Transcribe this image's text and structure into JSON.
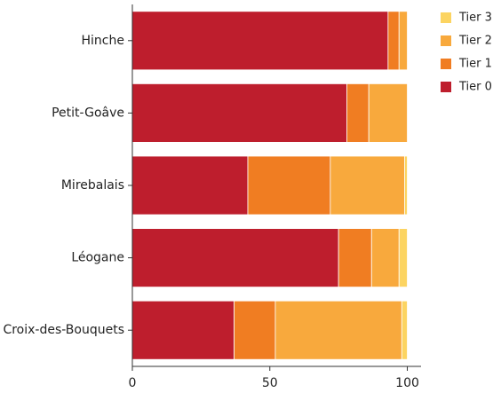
{
  "chart_data": {
    "type": "bar",
    "orientation": "horizontal",
    "stacked": true,
    "categories": [
      "Hinche",
      "Petit-Goâve",
      "Mirebalais",
      "Léogane",
      "Croix-des-Bouquets"
    ],
    "series": [
      {
        "name": "Tier 0",
        "color": "#be1e2d",
        "values": [
          93,
          78,
          42,
          75,
          37
        ]
      },
      {
        "name": "Tier 1",
        "color": "#f07d22",
        "values": [
          4,
          8,
          30,
          12,
          15
        ]
      },
      {
        "name": "Tier 2",
        "color": "#f8a93d",
        "values": [
          3,
          14,
          27,
          10,
          46
        ]
      },
      {
        "name": "Tier 3",
        "color": "#fcd461",
        "values": [
          0,
          0,
          1,
          3,
          2
        ]
      }
    ],
    "xlim": [
      0,
      105
    ],
    "xticks": [
      0,
      50,
      100
    ],
    "xtick_labels": [
      "0",
      "50",
      "100"
    ],
    "grid": false,
    "legend_position": "top-right",
    "legend_order": [
      "Tier 3",
      "Tier 2",
      "Tier 1",
      "Tier 0"
    ]
  }
}
